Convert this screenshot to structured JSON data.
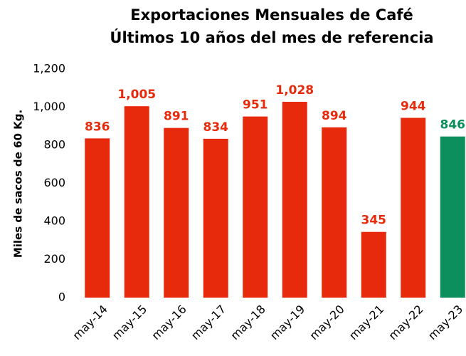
{
  "chart_data": {
    "type": "bar",
    "title": "Exportaciones Mensuales de Café",
    "subtitle": "Últimos 10 años del mes de referencia",
    "y_label": "Miles de sacos de 60 Kg.",
    "categories": [
      "may-14",
      "may-15",
      "may-16",
      "may-17",
      "may-18",
      "may-19",
      "may-20",
      "may-21",
      "may-22",
      "may-23"
    ],
    "values": [
      836,
      1005,
      891,
      834,
      951,
      1028,
      894,
      345,
      944,
      846
    ],
    "value_labels": [
      "836",
      "1,005",
      "891",
      "834",
      "951",
      "1,028",
      "894",
      "345",
      "944",
      "846"
    ],
    "colors": [
      "#e82a0c",
      "#e82a0c",
      "#e82a0c",
      "#e82a0c",
      "#e82a0c",
      "#e82a0c",
      "#e82a0c",
      "#e82a0c",
      "#e82a0c",
      "#0c8f5c"
    ],
    "ylim": [
      0,
      1200
    ],
    "yticks": [
      0,
      200,
      400,
      600,
      800,
      {
        "value": 1000,
        "label": "1,000"
      },
      {
        "value": 1200,
        "label": "1,200"
      }
    ],
    "grid": false
  }
}
